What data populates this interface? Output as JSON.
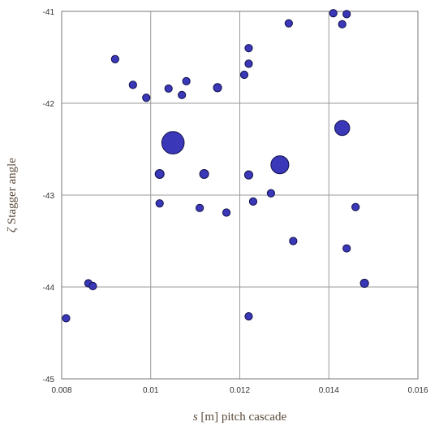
{
  "chart_data": {
    "type": "scatter",
    "title": "",
    "xlabel_symbol": "s",
    "xlabel_rest": " [m]  pitch cascade",
    "ylabel_symbol": "ζ",
    "ylabel_rest": " Stagger angle",
    "xlim": [
      0.008,
      0.016
    ],
    "ylim": [
      -45,
      -41
    ],
    "xticks": [
      0.008,
      0.01,
      0.012,
      0.014,
      0.016
    ],
    "xtick_labels": [
      "0.008",
      "0.01",
      "0.012",
      "0.014",
      "0.016"
    ],
    "yticks": [
      -45,
      -44,
      -43,
      -42,
      -41
    ],
    "ytick_labels": [
      "-45",
      "-44",
      "-43",
      "-42",
      "-41"
    ],
    "grid": true,
    "colors": {
      "marker_fill": "#3a37b8",
      "marker_edge": "#12124a",
      "grid": "#9a9a9a",
      "frame": "#777777"
    },
    "marker_size_note": "relative bubble size",
    "points": [
      {
        "x": 0.0081,
        "y": -44.34,
        "size": 1
      },
      {
        "x": 0.0086,
        "y": -43.96,
        "size": 1
      },
      {
        "x": 0.0087,
        "y": -43.99,
        "size": 1
      },
      {
        "x": 0.0092,
        "y": -41.52,
        "size": 1
      },
      {
        "x": 0.0096,
        "y": -41.8,
        "size": 1
      },
      {
        "x": 0.0099,
        "y": -41.94,
        "size": 1
      },
      {
        "x": 0.0102,
        "y": -42.77,
        "size": 1.2
      },
      {
        "x": 0.0102,
        "y": -43.09,
        "size": 1
      },
      {
        "x": 0.0104,
        "y": -41.84,
        "size": 1
      },
      {
        "x": 0.0105,
        "y": -42.43,
        "size": 3
      },
      {
        "x": 0.0107,
        "y": -41.91,
        "size": 1
      },
      {
        "x": 0.0108,
        "y": -41.76,
        "size": 1
      },
      {
        "x": 0.0111,
        "y": -43.14,
        "size": 1
      },
      {
        "x": 0.0112,
        "y": -42.77,
        "size": 1.2
      },
      {
        "x": 0.0115,
        "y": -41.83,
        "size": 1.1
      },
      {
        "x": 0.0117,
        "y": -43.19,
        "size": 1
      },
      {
        "x": 0.0121,
        "y": -41.69,
        "size": 1
      },
      {
        "x": 0.0122,
        "y": -41.4,
        "size": 1
      },
      {
        "x": 0.0122,
        "y": -41.57,
        "size": 1
      },
      {
        "x": 0.0122,
        "y": -42.78,
        "size": 1.1
      },
      {
        "x": 0.0122,
        "y": -44.32,
        "size": 1
      },
      {
        "x": 0.0123,
        "y": -43.07,
        "size": 1
      },
      {
        "x": 0.0127,
        "y": -42.98,
        "size": 1
      },
      {
        "x": 0.0129,
        "y": -42.67,
        "size": 2.4
      },
      {
        "x": 0.0131,
        "y": -41.13,
        "size": 1
      },
      {
        "x": 0.0132,
        "y": -43.5,
        "size": 1
      },
      {
        "x": 0.0141,
        "y": -41.02,
        "size": 1
      },
      {
        "x": 0.0143,
        "y": -41.14,
        "size": 1
      },
      {
        "x": 0.0143,
        "y": -42.27,
        "size": 2
      },
      {
        "x": 0.0144,
        "y": -41.03,
        "size": 1
      },
      {
        "x": 0.0144,
        "y": -43.58,
        "size": 1
      },
      {
        "x": 0.0146,
        "y": -43.13,
        "size": 1
      },
      {
        "x": 0.0148,
        "y": -43.96,
        "size": 1.1
      }
    ]
  }
}
